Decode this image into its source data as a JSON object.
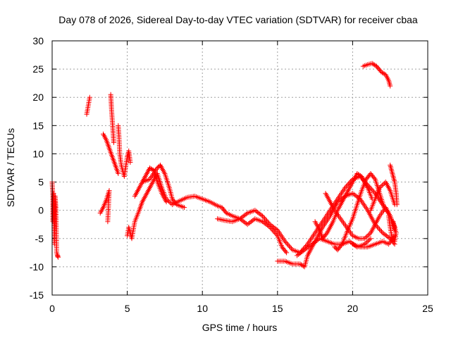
{
  "chart_data": {
    "type": "scatter",
    "title": "Day 078 of 2026, Sidereal Day-to-day VTEC variation (SDTVAR) for receiver cbaa",
    "xlabel": "GPS time / hours",
    "ylabel": "SDTVAR / TECUs",
    "xlim": [
      0,
      25
    ],
    "ylim": [
      -15,
      30
    ],
    "xticks": [
      0,
      5,
      10,
      15,
      20,
      25
    ],
    "yticks": [
      -15,
      -10,
      -5,
      0,
      5,
      10,
      15,
      20,
      25,
      30
    ],
    "grid": true,
    "marker": "+",
    "color": "#ff0000",
    "series": [
      {
        "name": "sdtvar",
        "segments": [
          [
            [
              0.0,
              5.0
            ],
            [
              0.05,
              2.5
            ],
            [
              0.05,
              -2.0
            ],
            [
              0.1,
              3.0
            ],
            [
              0.12,
              -1.5
            ],
            [
              0.15,
              -6.0
            ],
            [
              0.2,
              2.5
            ],
            [
              0.25,
              0.5
            ],
            [
              0.3,
              -7.5
            ],
            [
              0.4,
              -8.3
            ],
            [
              0.35,
              -8.0
            ]
          ],
          [
            [
              2.3,
              17.0
            ],
            [
              2.4,
              18.5
            ],
            [
              2.5,
              20.0
            ]
          ],
          [
            [
              3.2,
              -0.5
            ],
            [
              3.4,
              0.5
            ],
            [
              3.6,
              1.8
            ],
            [
              3.8,
              3.5
            ],
            [
              3.7,
              -2.0
            ]
          ],
          [
            [
              3.4,
              13.5
            ],
            [
              3.6,
              12.5
            ],
            [
              3.8,
              11.0
            ],
            [
              4.0,
              9.5
            ],
            [
              4.2,
              8.0
            ],
            [
              4.4,
              6.5
            ]
          ],
          [
            [
              3.9,
              20.5
            ],
            [
              3.95,
              18.0
            ],
            [
              4.0,
              16.0
            ],
            [
              4.05,
              14.0
            ],
            [
              4.1,
              12.0
            ]
          ],
          [
            [
              4.4,
              15.0
            ],
            [
              4.45,
              13.0
            ],
            [
              4.5,
              10.0
            ],
            [
              4.6,
              8.0
            ],
            [
              4.8,
              6.0
            ],
            [
              5.0,
              9.5
            ],
            [
              5.1,
              10.5
            ],
            [
              5.2,
              8.5
            ]
          ],
          [
            [
              5.0,
              -4.5
            ],
            [
              5.1,
              -3.0
            ],
            [
              5.3,
              -5.0
            ],
            [
              5.5,
              -2.0
            ],
            [
              5.8,
              0.0
            ],
            [
              6.0,
              1.5
            ],
            [
              6.3,
              3.0
            ],
            [
              6.7,
              5.0
            ],
            [
              7.0,
              6.5
            ],
            [
              7.3,
              4.0
            ],
            [
              7.6,
              2.0
            ],
            [
              8.0,
              1.0
            ],
            [
              8.5,
              1.7
            ],
            [
              9.0,
              2.3
            ],
            [
              9.5,
              2.5
            ],
            [
              10.0,
              2.0
            ],
            [
              10.5,
              1.5
            ],
            [
              11.0,
              0.8
            ],
            [
              11.3,
              0.5
            ],
            [
              11.6,
              -0.5
            ],
            [
              12.0,
              -1.0
            ],
            [
              12.5,
              -1.5
            ],
            [
              13.0,
              -0.5
            ],
            [
              13.5,
              0.0
            ],
            [
              14.0,
              -1.0
            ],
            [
              14.5,
              -2.5
            ],
            [
              15.0,
              -3.5
            ],
            [
              15.5,
              -5.5
            ],
            [
              16.0,
              -7.0
            ],
            [
              16.5,
              -7.5
            ],
            [
              17.0,
              -6.0
            ],
            [
              17.5,
              -4.0
            ],
            [
              18.0,
              -2.0
            ],
            [
              18.5,
              0.0
            ],
            [
              19.0,
              2.0
            ],
            [
              19.5,
              4.0
            ],
            [
              20.0,
              5.5
            ],
            [
              20.5,
              6.0
            ],
            [
              21.0,
              4.5
            ],
            [
              21.5,
              3.0
            ],
            [
              22.0,
              1.0
            ],
            [
              22.5,
              -1.0
            ],
            [
              22.8,
              -3.5
            ]
          ],
          [
            [
              6.0,
              5.0
            ],
            [
              6.5,
              5.5
            ],
            [
              7.0,
              7.5
            ],
            [
              7.2,
              8.0
            ],
            [
              7.5,
              6.5
            ],
            [
              7.8,
              4.0
            ],
            [
              8.0,
              2.0
            ],
            [
              8.3,
              1.0
            ],
            [
              8.8,
              0.5
            ]
          ],
          [
            [
              5.5,
              2.5
            ],
            [
              5.8,
              4.0
            ],
            [
              6.2,
              6.0
            ],
            [
              6.5,
              7.5
            ],
            [
              6.8,
              7.0
            ],
            [
              7.0,
              5.0
            ],
            [
              7.3,
              3.0
            ],
            [
              7.6,
              1.5
            ]
          ],
          [
            [
              11.0,
              -1.5
            ],
            [
              11.5,
              -1.8
            ],
            [
              12.0,
              -2.0
            ],
            [
              12.5,
              -1.5
            ],
            [
              13.0,
              -2.5
            ],
            [
              13.5,
              -1.5
            ],
            [
              14.0,
              -2.0
            ],
            [
              14.5,
              -3.0
            ],
            [
              15.0,
              -4.5
            ],
            [
              15.3,
              -6.5
            ],
            [
              15.6,
              -7.5
            ]
          ],
          [
            [
              15.0,
              -9.0
            ],
            [
              15.5,
              -9.0
            ],
            [
              16.0,
              -9.5
            ],
            [
              16.5,
              -9.5
            ],
            [
              16.8,
              -10.0
            ],
            [
              17.0,
              -8.0
            ],
            [
              17.5,
              -5.5
            ],
            [
              18.0,
              -3.0
            ],
            [
              18.5,
              -1.0
            ],
            [
              19.0,
              1.5
            ],
            [
              19.5,
              2.5
            ],
            [
              20.0,
              3.0
            ],
            [
              20.5,
              2.0
            ],
            [
              21.0,
              0.0
            ],
            [
              21.5,
              -2.5
            ],
            [
              22.0,
              -4.0
            ],
            [
              22.5,
              -5.0
            ],
            [
              22.8,
              -6.0
            ]
          ],
          [
            [
              16.3,
              -8.0
            ],
            [
              16.8,
              -7.0
            ],
            [
              17.3,
              -6.0
            ],
            [
              17.8,
              -5.0
            ],
            [
              18.3,
              -5.5
            ],
            [
              18.8,
              -6.0
            ],
            [
              19.3,
              -6.0
            ],
            [
              19.8,
              -5.5
            ],
            [
              20.3,
              -6.5
            ],
            [
              20.8,
              -6.0
            ],
            [
              21.2,
              -5.0
            ]
          ],
          [
            [
              17.5,
              -2.0
            ],
            [
              17.8,
              -3.5
            ],
            [
              18.0,
              -5.0
            ],
            [
              18.3,
              -4.0
            ],
            [
              18.7,
              -2.0
            ],
            [
              19.0,
              0.0
            ],
            [
              19.5,
              2.5
            ],
            [
              20.0,
              5.0
            ],
            [
              20.3,
              6.5
            ],
            [
              20.6,
              6.0
            ],
            [
              21.0,
              4.0
            ],
            [
              21.3,
              2.0
            ]
          ],
          [
            [
              18.8,
              -6.5
            ],
            [
              19.0,
              -7.0
            ],
            [
              19.3,
              -6.0
            ],
            [
              19.6,
              -4.0
            ],
            [
              20.0,
              -1.5
            ],
            [
              20.3,
              1.0
            ],
            [
              20.6,
              3.5
            ],
            [
              20.9,
              5.5
            ],
            [
              21.2,
              6.5
            ],
            [
              21.5,
              5.5
            ],
            [
              21.8,
              3.0
            ],
            [
              22.1,
              0.5
            ]
          ],
          [
            [
              18.2,
              3.0
            ],
            [
              18.5,
              1.5
            ],
            [
              18.8,
              0.0
            ],
            [
              19.2,
              -1.5
            ],
            [
              19.6,
              -3.0
            ],
            [
              20.0,
              -4.5
            ],
            [
              20.4,
              -5.0
            ],
            [
              20.8,
              -5.0
            ],
            [
              21.2,
              -4.0
            ],
            [
              21.5,
              -2.5
            ],
            [
              21.8,
              -1.0
            ],
            [
              22.2,
              0.5
            ],
            [
              22.5,
              -1.0
            ],
            [
              22.8,
              -3.0
            ]
          ],
          [
            [
              21.2,
              0.0
            ],
            [
              21.5,
              2.0
            ],
            [
              21.8,
              4.0
            ],
            [
              22.2,
              5.0
            ],
            [
              22.5,
              3.5
            ],
            [
              22.8,
              1.0
            ]
          ],
          [
            [
              22.4,
              -1.0
            ],
            [
              22.5,
              -3.0
            ],
            [
              22.6,
              -4.5
            ],
            [
              22.8,
              -5.5
            ],
            [
              22.9,
              -4.0
            ],
            [
              22.7,
              -2.0
            ]
          ],
          [
            [
              20.0,
              -6.0
            ],
            [
              20.5,
              -6.5
            ],
            [
              21.0,
              -6.5
            ],
            [
              21.5,
              -6.0
            ],
            [
              22.0,
              -5.5
            ],
            [
              22.4,
              -6.0
            ],
            [
              22.8,
              -4.5
            ]
          ],
          [
            [
              22.5,
              8.0
            ],
            [
              22.6,
              7.0
            ],
            [
              22.7,
              6.0
            ],
            [
              22.8,
              5.0
            ],
            [
              22.9,
              3.0
            ],
            [
              22.95,
              1.0
            ]
          ],
          [
            [
              20.7,
              25.5
            ],
            [
              21.0,
              25.8
            ],
            [
              21.3,
              26.0
            ],
            [
              21.6,
              25.5
            ],
            [
              21.9,
              24.5
            ],
            [
              22.2,
              24.0
            ],
            [
              22.4,
              23.0
            ],
            [
              22.5,
              22.0
            ]
          ]
        ]
      }
    ]
  }
}
